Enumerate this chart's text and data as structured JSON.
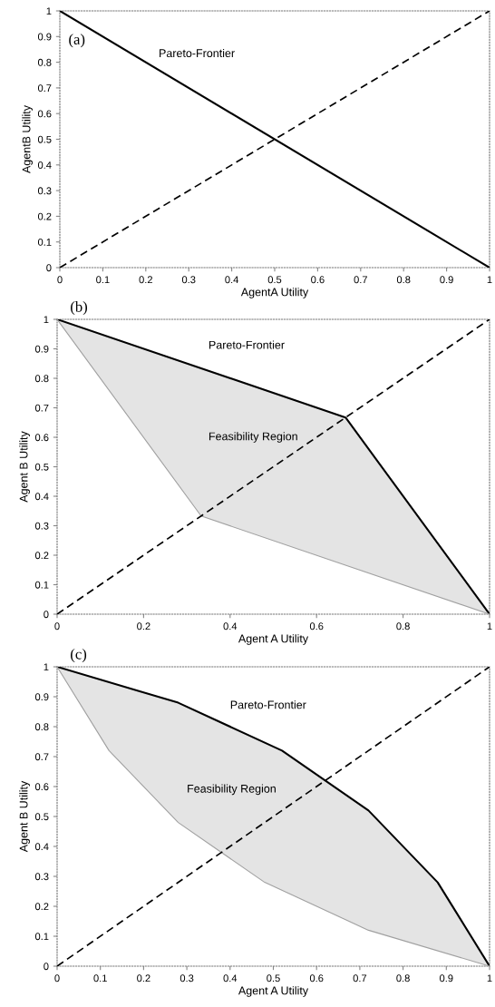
{
  "chart_data": [
    {
      "type": "line",
      "xlabel": "AgentA Utility",
      "ylabel": "AgentB Utility",
      "xlim": [
        0,
        1
      ],
      "ylim": [
        0,
        1
      ],
      "xticks": [
        0,
        0.1,
        0.2,
        0.3,
        0.4,
        0.5,
        0.6,
        0.7,
        0.8,
        0.9,
        1
      ],
      "yticks": [
        0,
        0.1,
        0.2,
        0.3,
        0.4,
        0.5,
        0.6,
        0.7,
        0.8,
        0.9,
        1
      ],
      "grid": false,
      "legend": false,
      "series": [
        {
          "color": "#000000",
          "line_style": "solid",
          "x": [
            0,
            1
          ],
          "values": [
            1,
            0
          ]
        },
        {
          "color": "#000000",
          "line_style": "dashed",
          "x": [
            0,
            1
          ],
          "values": [
            0,
            1
          ]
        }
      ],
      "annotations": [
        "(a)",
        "Pareto-Frontier"
      ]
    },
    {
      "type": "line",
      "title": "(b)",
      "xlabel": "Agent A Utility",
      "ylabel": "Agent B Utility",
      "xlim": [
        0,
        1
      ],
      "ylim": [
        0,
        1
      ],
      "xticks": [
        0,
        0.2,
        0.4,
        0.6,
        0.8,
        1
      ],
      "yticks": [
        0,
        0.1,
        0.2,
        0.3,
        0.4,
        0.5,
        0.6,
        0.7,
        0.8,
        0.9,
        1
      ],
      "grid": false,
      "legend": false,
      "series": [
        {
          "color": "#000000",
          "line_style": "solid",
          "x": [
            0,
            0.667,
            1
          ],
          "values": [
            1,
            0.667,
            0
          ]
        },
        {
          "color": "#a0a0a0",
          "line_style": "solid",
          "x": [
            0,
            0.333,
            1
          ],
          "values": [
            1,
            0.333,
            0
          ]
        },
        {
          "color": "#000000",
          "line_style": "dashed",
          "x": [
            0,
            1
          ],
          "values": [
            0,
            1
          ]
        }
      ],
      "annotations": [
        "Pareto-Frontier",
        "Feasibility Region"
      ]
    },
    {
      "type": "line",
      "title": "(c)",
      "xlabel": "Agent A Utility",
      "ylabel": "Agent B Utility",
      "xlim": [
        0,
        1
      ],
      "ylim": [
        0,
        1
      ],
      "xticks": [
        0,
        0.1,
        0.2,
        0.3,
        0.4,
        0.5,
        0.6,
        0.7,
        0.8,
        0.9,
        1
      ],
      "yticks": [
        0,
        0.1,
        0.2,
        0.3,
        0.4,
        0.5,
        0.6,
        0.7,
        0.8,
        0.9,
        1
      ],
      "grid": false,
      "legend": false,
      "series": [
        {
          "color": "#000000",
          "line_style": "solid",
          "x": [
            0,
            0.28,
            0.52,
            0.72,
            0.88,
            1
          ],
          "values": [
            1,
            0.88,
            0.72,
            0.52,
            0.28,
            0
          ]
        },
        {
          "color": "#a0a0a0",
          "line_style": "solid",
          "x": [
            0,
            0.12,
            0.28,
            0.48,
            0.72,
            1
          ],
          "values": [
            1,
            0.72,
            0.48,
            0.28,
            0.12,
            0
          ]
        },
        {
          "color": "#000000",
          "line_style": "dashed",
          "x": [
            0,
            1
          ],
          "values": [
            0,
            1
          ]
        }
      ],
      "annotations": [
        "Pareto-Frontier",
        "Feasibility Region"
      ]
    }
  ]
}
